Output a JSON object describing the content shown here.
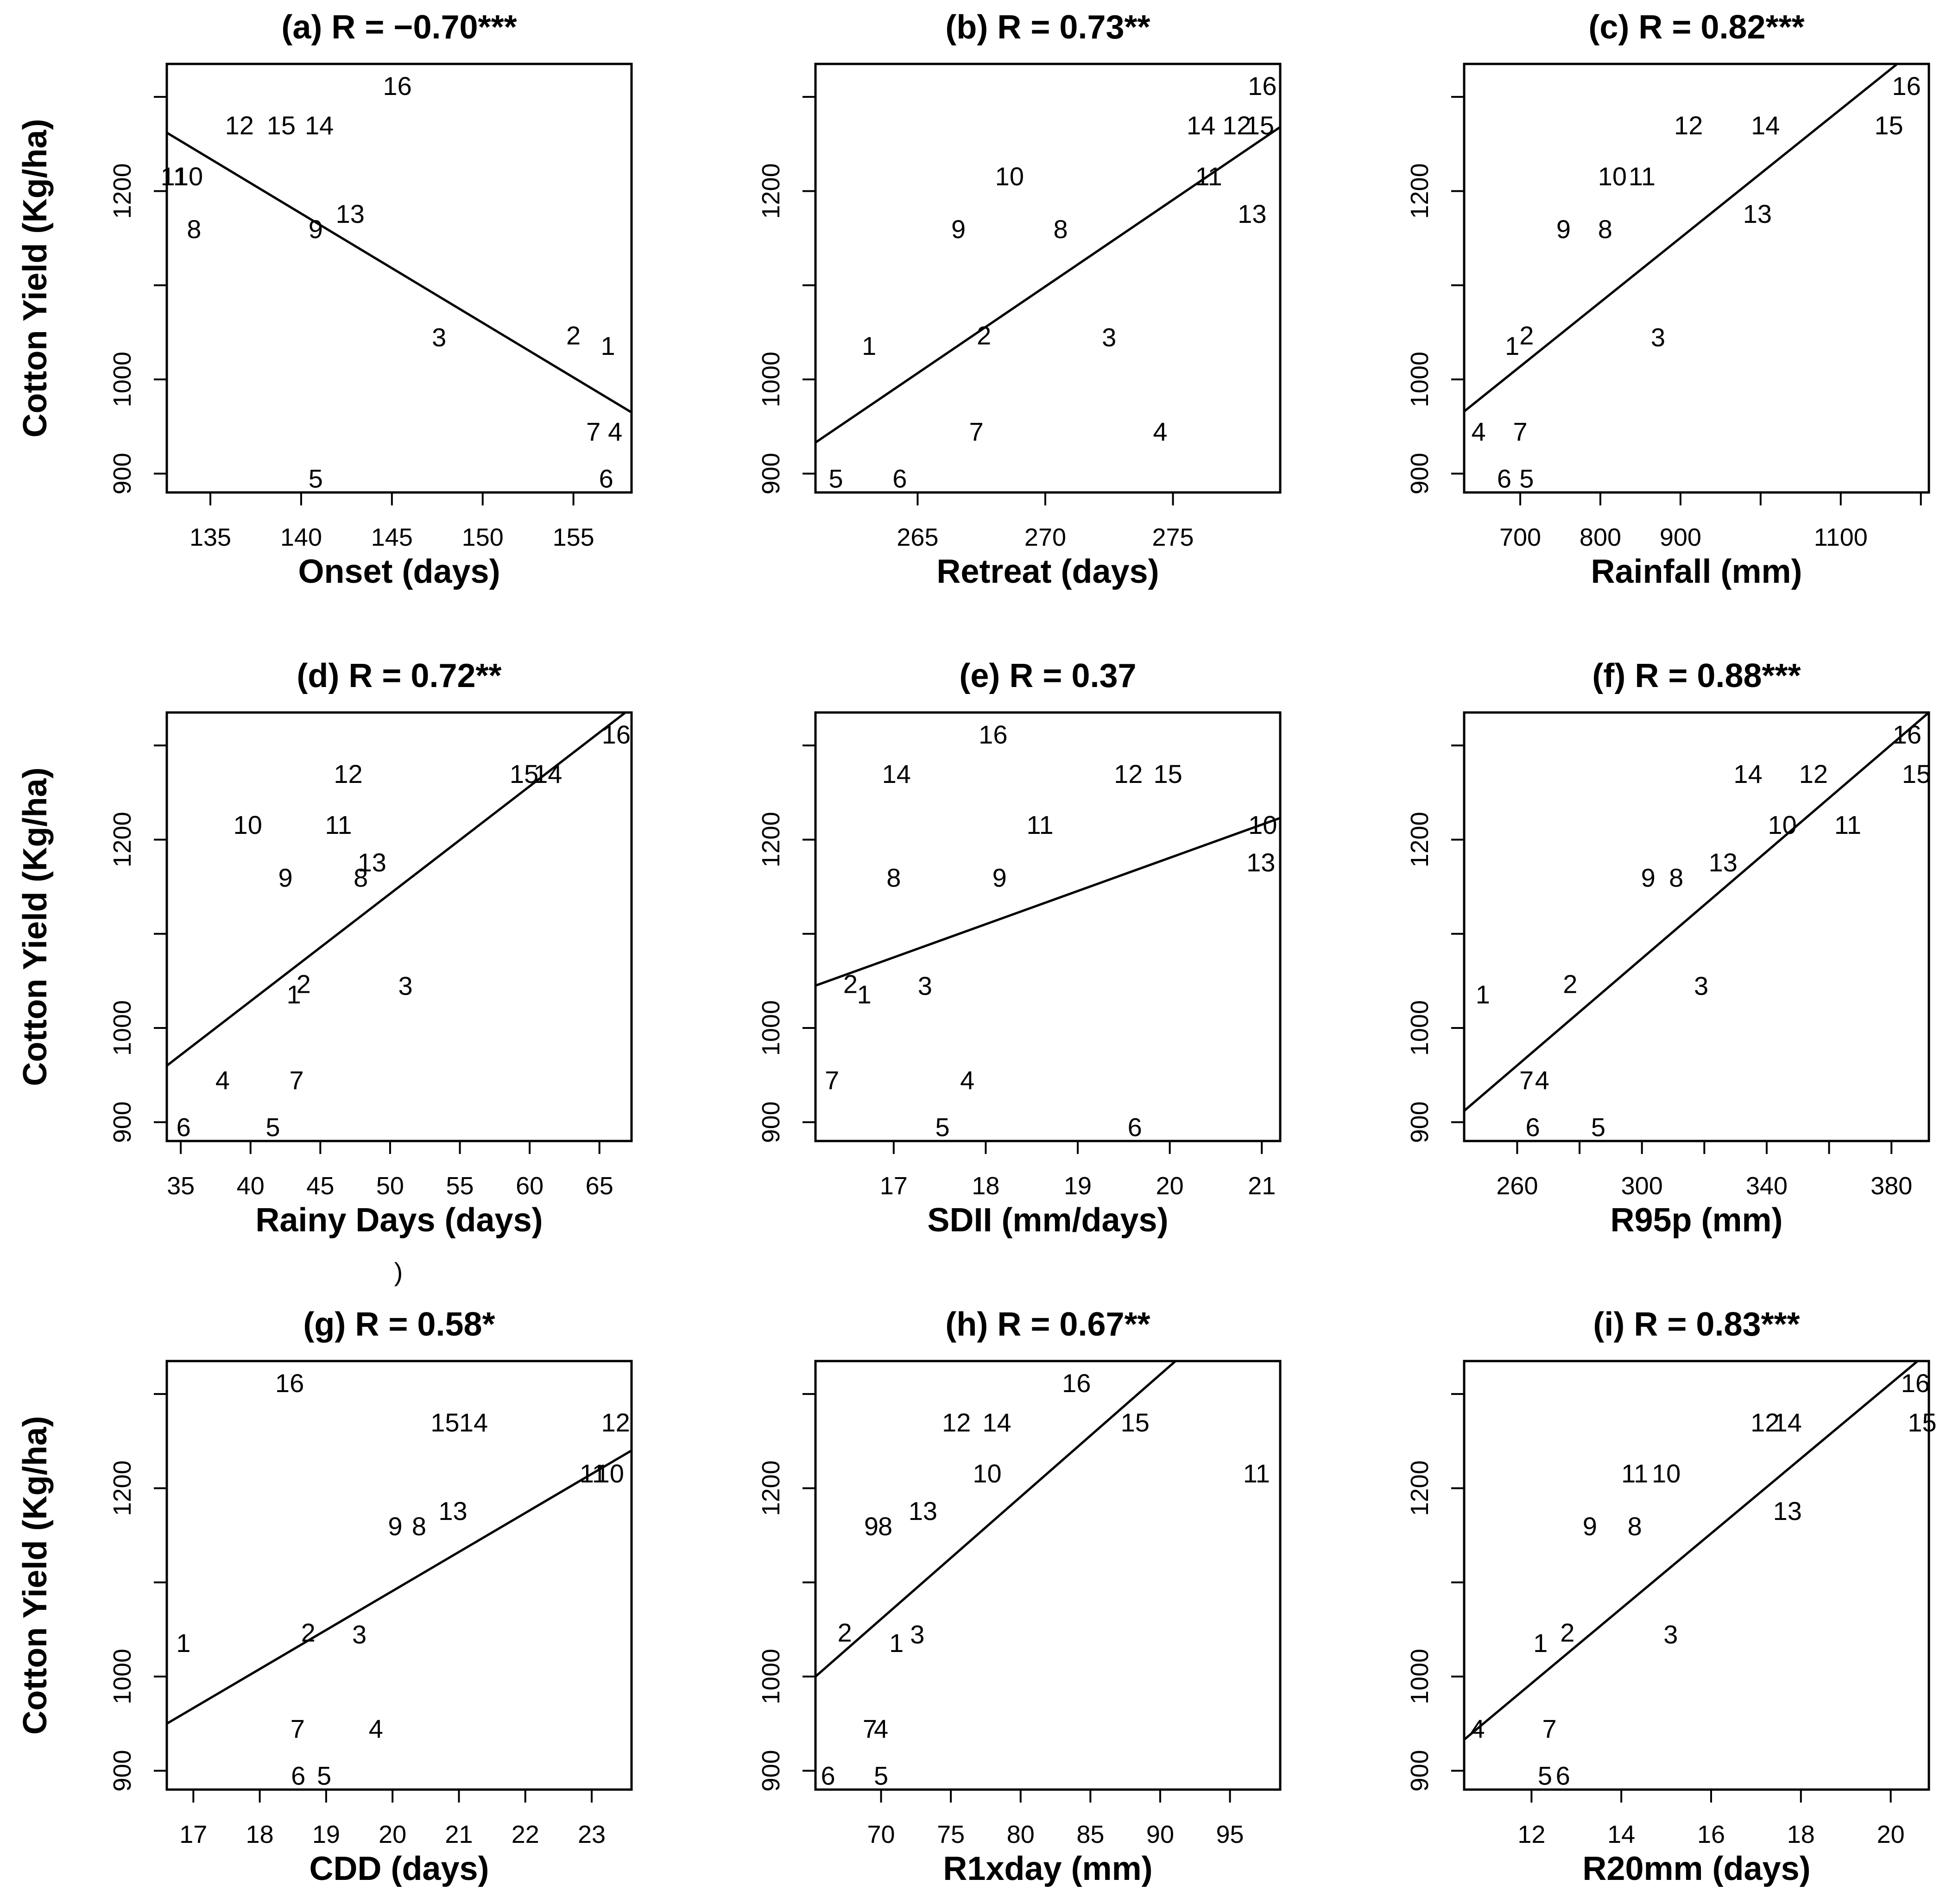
{
  "figure": {
    "stray_mark": ")"
  },
  "chart_data": [
    {
      "type": "scatter",
      "panel": "a",
      "title": "(a) R = −0.70***",
      "xlabel": "Onset (days)",
      "ylabel": "Cotton Yield (Kg/ha)",
      "xlim": [
        132.6,
        158.2
      ],
      "ylim": [
        880,
        1335
      ],
      "xticks": [
        135,
        140,
        145,
        150,
        155
      ],
      "yticks": [
        900,
        1000,
        1200
      ],
      "yminor": [
        1100,
        1300
      ],
      "fit": [
        [
          132.6,
          1262
        ],
        [
          158.2,
          965
        ]
      ],
      "points": [
        {
          "label": "1",
          "x": 156.9,
          "y": 1036
        },
        {
          "label": "2",
          "x": 155.0,
          "y": 1047
        },
        {
          "label": "3",
          "x": 147.6,
          "y": 1045
        },
        {
          "label": "4",
          "x": 157.3,
          "y": 945
        },
        {
          "label": "5",
          "x": 140.8,
          "y": 895
        },
        {
          "label": "6",
          "x": 156.8,
          "y": 895
        },
        {
          "label": "7",
          "x": 156.1,
          "y": 945
        },
        {
          "label": "8",
          "x": 134.1,
          "y": 1160
        },
        {
          "label": "9",
          "x": 140.8,
          "y": 1160
        },
        {
          "label": "10",
          "x": 133.8,
          "y": 1216
        },
        {
          "label": "11",
          "x": 133.0,
          "y": 1216
        },
        {
          "label": "12",
          "x": 136.6,
          "y": 1270
        },
        {
          "label": "13",
          "x": 142.7,
          "y": 1176
        },
        {
          "label": "14",
          "x": 141.0,
          "y": 1270
        },
        {
          "label": "15",
          "x": 138.9,
          "y": 1270
        },
        {
          "label": "16",
          "x": 145.3,
          "y": 1312
        }
      ]
    },
    {
      "type": "scatter",
      "panel": "b",
      "title": "(b) R = 0.73**",
      "xlabel": "Retreat (days)",
      "ylabel": "",
      "xlim": [
        261.0,
        279.2
      ],
      "ylim": [
        880,
        1335
      ],
      "xticks": [
        265,
        270,
        275
      ],
      "yticks": [
        900,
        1000,
        1200
      ],
      "yminor": [
        1100,
        1300
      ],
      "fit": [
        [
          261.0,
          933
        ],
        [
          279.2,
          1268
        ]
      ],
      "points": [
        {
          "label": "1",
          "x": 263.1,
          "y": 1036
        },
        {
          "label": "2",
          "x": 267.6,
          "y": 1047
        },
        {
          "label": "3",
          "x": 272.5,
          "y": 1045
        },
        {
          "label": "4",
          "x": 274.5,
          "y": 945
        },
        {
          "label": "5",
          "x": 261.8,
          "y": 895
        },
        {
          "label": "6",
          "x": 264.3,
          "y": 895
        },
        {
          "label": "7",
          "x": 267.3,
          "y": 945
        },
        {
          "label": "8",
          "x": 270.6,
          "y": 1160
        },
        {
          "label": "9",
          "x": 266.6,
          "y": 1160
        },
        {
          "label": "10",
          "x": 268.6,
          "y": 1216
        },
        {
          "label": "11",
          "x": 276.4,
          "y": 1216
        },
        {
          "label": "12",
          "x": 277.5,
          "y": 1270
        },
        {
          "label": "13",
          "x": 278.1,
          "y": 1176
        },
        {
          "label": "14",
          "x": 276.1,
          "y": 1270
        },
        {
          "label": "15",
          "x": 278.4,
          "y": 1270
        },
        {
          "label": "16",
          "x": 278.5,
          "y": 1312
        }
      ]
    },
    {
      "type": "scatter",
      "panel": "c",
      "title": "(c) R = 0.82***",
      "xlabel": "Rainfall (mm)",
      "ylabel": "",
      "xlim": [
        630,
        1210
      ],
      "ylim": [
        880,
        1335
      ],
      "xticks": [
        700,
        800,
        900,
        1100
      ],
      "xminor": [
        1000,
        1200
      ],
      "yticks": [
        900,
        1000,
        1200
      ],
      "yminor": [
        1100,
        1300
      ],
      "fit": [
        [
          630,
          966
        ],
        [
          1210,
          1362
        ]
      ],
      "points": [
        {
          "label": "1",
          "x": 690,
          "y": 1036
        },
        {
          "label": "2",
          "x": 708,
          "y": 1047
        },
        {
          "label": "3",
          "x": 872,
          "y": 1045
        },
        {
          "label": "4",
          "x": 648,
          "y": 945
        },
        {
          "label": "5",
          "x": 708,
          "y": 895
        },
        {
          "label": "6",
          "x": 680,
          "y": 895
        },
        {
          "label": "7",
          "x": 700,
          "y": 945
        },
        {
          "label": "8",
          "x": 806,
          "y": 1160
        },
        {
          "label": "9",
          "x": 754,
          "y": 1160
        },
        {
          "label": "10",
          "x": 815,
          "y": 1216
        },
        {
          "label": "11",
          "x": 852,
          "y": 1216
        },
        {
          "label": "12",
          "x": 910,
          "y": 1270
        },
        {
          "label": "13",
          "x": 996,
          "y": 1176
        },
        {
          "label": "14",
          "x": 1006,
          "y": 1270
        },
        {
          "label": "15",
          "x": 1160,
          "y": 1270
        },
        {
          "label": "16",
          "x": 1182,
          "y": 1312
        }
      ]
    },
    {
      "type": "scatter",
      "panel": "d",
      "title": "(d) R = 0.72**",
      "xlabel": "Rainy Days (days)",
      "ylabel": "Cotton Yield (Kg/ha)",
      "xlim": [
        34.0,
        67.3
      ],
      "ylim": [
        880,
        1335
      ],
      "xticks": [
        35,
        40,
        45,
        50,
        55,
        60,
        65
      ],
      "yticks": [
        900,
        1000,
        1200
      ],
      "yminor": [
        1100,
        1300
      ],
      "fit": [
        [
          34.0,
          960
        ],
        [
          67.3,
          1340
        ]
      ],
      "points": [
        {
          "label": "1",
          "x": 43.1,
          "y": 1036
        },
        {
          "label": "2",
          "x": 43.8,
          "y": 1047
        },
        {
          "label": "3",
          "x": 51.1,
          "y": 1045
        },
        {
          "label": "4",
          "x": 38.0,
          "y": 945
        },
        {
          "label": "5",
          "x": 41.6,
          "y": 895
        },
        {
          "label": "6",
          "x": 35.2,
          "y": 895
        },
        {
          "label": "7",
          "x": 43.3,
          "y": 945
        },
        {
          "label": "8",
          "x": 47.9,
          "y": 1160
        },
        {
          "label": "9",
          "x": 42.5,
          "y": 1160
        },
        {
          "label": "10",
          "x": 39.8,
          "y": 1216
        },
        {
          "label": "11",
          "x": 46.3,
          "y": 1216
        },
        {
          "label": "12",
          "x": 47.0,
          "y": 1270
        },
        {
          "label": "13",
          "x": 48.7,
          "y": 1176
        },
        {
          "label": "14",
          "x": 61.3,
          "y": 1270
        },
        {
          "label": "15",
          "x": 59.6,
          "y": 1270
        },
        {
          "label": "16",
          "x": 66.2,
          "y": 1312
        }
      ]
    },
    {
      "type": "scatter",
      "panel": "e",
      "title": "(e) R = 0.37",
      "xlabel": "SDII (mm/days)",
      "ylabel": "",
      "xlim": [
        16.15,
        21.2
      ],
      "ylim": [
        880,
        1335
      ],
      "xticks": [
        17,
        18,
        19,
        20,
        21
      ],
      "yticks": [
        900,
        1000,
        1200
      ],
      "yminor": [
        1100,
        1300
      ],
      "fit": [
        [
          16.15,
          1045
        ],
        [
          21.2,
          1223
        ]
      ],
      "points": [
        {
          "label": "1",
          "x": 16.68,
          "y": 1036
        },
        {
          "label": "2",
          "x": 16.53,
          "y": 1047
        },
        {
          "label": "3",
          "x": 17.34,
          "y": 1045
        },
        {
          "label": "4",
          "x": 17.8,
          "y": 945
        },
        {
          "label": "5",
          "x": 17.53,
          "y": 895
        },
        {
          "label": "6",
          "x": 19.62,
          "y": 895
        },
        {
          "label": "7",
          "x": 16.33,
          "y": 945
        },
        {
          "label": "8",
          "x": 17.0,
          "y": 1160
        },
        {
          "label": "9",
          "x": 18.15,
          "y": 1160
        },
        {
          "label": "10",
          "x": 21.01,
          "y": 1216
        },
        {
          "label": "11",
          "x": 18.59,
          "y": 1216
        },
        {
          "label": "12",
          "x": 19.55,
          "y": 1270
        },
        {
          "label": "13",
          "x": 20.99,
          "y": 1176
        },
        {
          "label": "14",
          "x": 17.03,
          "y": 1270
        },
        {
          "label": "15",
          "x": 19.98,
          "y": 1270
        },
        {
          "label": "16",
          "x": 18.08,
          "y": 1312
        }
      ]
    },
    {
      "type": "scatter",
      "panel": "f",
      "title": "(f) R = 0.88***",
      "xlabel": "R95p (mm)",
      "ylabel": "",
      "xlim": [
        243,
        392
      ],
      "ylim": [
        880,
        1335
      ],
      "xticks": [
        260,
        300,
        340,
        380
      ],
      "xminor": [
        280,
        320,
        360
      ],
      "yticks": [
        900,
        1000,
        1200
      ],
      "yminor": [
        1100,
        1300
      ],
      "fit": [
        [
          243,
          912
        ],
        [
          392,
          1335
        ]
      ],
      "points": [
        {
          "label": "1",
          "x": 249,
          "y": 1036
        },
        {
          "label": "2",
          "x": 277,
          "y": 1047
        },
        {
          "label": "3",
          "x": 319,
          "y": 1045
        },
        {
          "label": "4",
          "x": 268,
          "y": 945
        },
        {
          "label": "5",
          "x": 286,
          "y": 895
        },
        {
          "label": "6",
          "x": 265,
          "y": 895
        },
        {
          "label": "7",
          "x": 263,
          "y": 945
        },
        {
          "label": "8",
          "x": 311,
          "y": 1160
        },
        {
          "label": "9",
          "x": 302,
          "y": 1160
        },
        {
          "label": "10",
          "x": 345,
          "y": 1216
        },
        {
          "label": "11",
          "x": 366,
          "y": 1216
        },
        {
          "label": "12",
          "x": 355,
          "y": 1270
        },
        {
          "label": "13",
          "x": 326,
          "y": 1176
        },
        {
          "label": "14",
          "x": 334,
          "y": 1270
        },
        {
          "label": "15",
          "x": 388,
          "y": 1270
        },
        {
          "label": "16",
          "x": 385,
          "y": 1312
        }
      ]
    },
    {
      "type": "scatter",
      "panel": "g",
      "title": "(g) R = 0.58*",
      "xlabel": "CDD (days)",
      "ylabel": "Cotton Yield (Kg/ha)",
      "xlim": [
        16.6,
        23.6
      ],
      "ylim": [
        880,
        1335
      ],
      "xticks": [
        17,
        18,
        19,
        20,
        21,
        22,
        23
      ],
      "yticks": [
        900,
        1000,
        1200
      ],
      "yminor": [
        1100,
        1300
      ],
      "fit": [
        [
          16.6,
          950
        ],
        [
          23.6,
          1240
        ]
      ],
      "points": [
        {
          "label": "1",
          "x": 16.85,
          "y": 1036
        },
        {
          "label": "2",
          "x": 18.73,
          "y": 1047
        },
        {
          "label": "3",
          "x": 19.5,
          "y": 1045
        },
        {
          "label": "4",
          "x": 19.75,
          "y": 945
        },
        {
          "label": "5",
          "x": 18.97,
          "y": 895
        },
        {
          "label": "6",
          "x": 18.58,
          "y": 895
        },
        {
          "label": "7",
          "x": 18.57,
          "y": 945
        },
        {
          "label": "8",
          "x": 20.4,
          "y": 1160
        },
        {
          "label": "9",
          "x": 20.04,
          "y": 1160
        },
        {
          "label": "10",
          "x": 23.27,
          "y": 1216
        },
        {
          "label": "11",
          "x": 23.02,
          "y": 1216
        },
        {
          "label": "12",
          "x": 23.36,
          "y": 1270
        },
        {
          "label": "13",
          "x": 20.91,
          "y": 1176
        },
        {
          "label": "14",
          "x": 21.22,
          "y": 1270
        },
        {
          "label": "15",
          "x": 20.79,
          "y": 1270
        },
        {
          "label": "16",
          "x": 18.45,
          "y": 1312
        }
      ]
    },
    {
      "type": "scatter",
      "panel": "h",
      "title": "(h) R = 0.67**",
      "xlabel": "R1xday (mm)",
      "ylabel": "",
      "xlim": [
        65.3,
        98.6
      ],
      "ylim": [
        880,
        1335
      ],
      "xticks": [
        70,
        75,
        80,
        85,
        90,
        95
      ],
      "yticks": [
        900,
        1000,
        1200
      ],
      "yminor": [
        1100,
        1300
      ],
      "fit": [
        [
          65.3,
          1000
        ],
        [
          91.1,
          1335
        ]
      ],
      "points": [
        {
          "label": "1",
          "x": 71.1,
          "y": 1036
        },
        {
          "label": "2",
          "x": 67.4,
          "y": 1047
        },
        {
          "label": "3",
          "x": 72.6,
          "y": 1045
        },
        {
          "label": "4",
          "x": 70.0,
          "y": 945
        },
        {
          "label": "5",
          "x": 70.0,
          "y": 895
        },
        {
          "label": "6",
          "x": 66.2,
          "y": 895
        },
        {
          "label": "7",
          "x": 69.2,
          "y": 945
        },
        {
          "label": "8",
          "x": 70.3,
          "y": 1160
        },
        {
          "label": "9",
          "x": 69.3,
          "y": 1160
        },
        {
          "label": "10",
          "x": 77.6,
          "y": 1216
        },
        {
          "label": "11",
          "x": 96.9,
          "y": 1216
        },
        {
          "label": "12",
          "x": 75.4,
          "y": 1270
        },
        {
          "label": "13",
          "x": 73.0,
          "y": 1176
        },
        {
          "label": "14",
          "x": 78.3,
          "y": 1270
        },
        {
          "label": "15",
          "x": 88.2,
          "y": 1270
        },
        {
          "label": "16",
          "x": 84.0,
          "y": 1312
        }
      ]
    },
    {
      "type": "scatter",
      "panel": "i",
      "title": "(i) R = 0.83***",
      "xlabel": "R20mm (days)",
      "ylabel": "",
      "xlim": [
        10.5,
        20.85
      ],
      "ylim": [
        880,
        1335
      ],
      "xticks": [
        12,
        14,
        16,
        18,
        20
      ],
      "yticks": [
        900,
        1000,
        1200
      ],
      "yminor": [
        1100,
        1300
      ],
      "fit": [
        [
          10.5,
          933
        ],
        [
          20.85,
          1345
        ]
      ],
      "points": [
        {
          "label": "1",
          "x": 12.2,
          "y": 1036
        },
        {
          "label": "2",
          "x": 12.8,
          "y": 1047
        },
        {
          "label": "3",
          "x": 15.1,
          "y": 1045
        },
        {
          "label": "4",
          "x": 10.8,
          "y": 945
        },
        {
          "label": "5",
          "x": 12.3,
          "y": 895
        },
        {
          "label": "6",
          "x": 12.7,
          "y": 895
        },
        {
          "label": "7",
          "x": 12.4,
          "y": 945
        },
        {
          "label": "8",
          "x": 14.3,
          "y": 1160
        },
        {
          "label": "9",
          "x": 13.3,
          "y": 1160
        },
        {
          "label": "10",
          "x": 15.0,
          "y": 1216
        },
        {
          "label": "11",
          "x": 14.3,
          "y": 1216
        },
        {
          "label": "12",
          "x": 17.2,
          "y": 1270
        },
        {
          "label": "13",
          "x": 17.7,
          "y": 1176
        },
        {
          "label": "14",
          "x": 17.7,
          "y": 1270
        },
        {
          "label": "15",
          "x": 20.7,
          "y": 1270
        },
        {
          "label": "16",
          "x": 20.55,
          "y": 1312
        }
      ]
    }
  ]
}
